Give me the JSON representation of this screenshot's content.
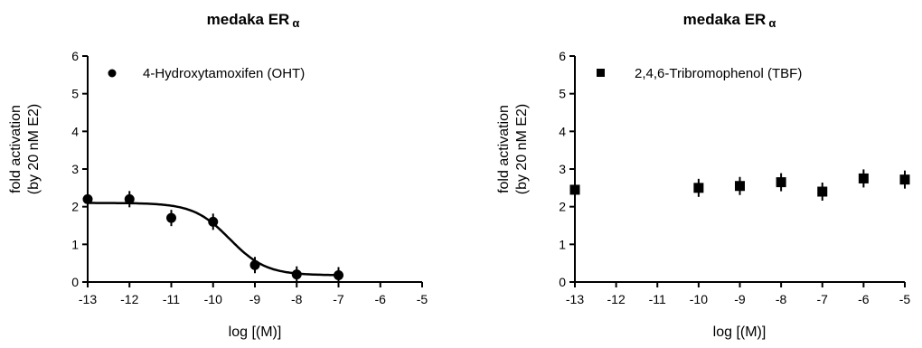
{
  "charts": [
    {
      "title_main": "medaka ER",
      "title_greek": "α",
      "xlabel": "log [(M)]",
      "ylabel_line1": "fold activation",
      "ylabel_line2": "(by 20 nM E2)",
      "legend_label": "4-Hydroxytamoxifen (OHT)"
    },
    {
      "title_main": "medaka ER",
      "title_greek": "α",
      "xlabel": "log [(M)]",
      "ylabel_line1": "fold activation",
      "ylabel_line2": "(by 20 nM E2)",
      "legend_label": "2,4,6-Tribromophenol (TBF)"
    }
  ],
  "chart_data": [
    {
      "type": "scatter",
      "title": "medaka ER α",
      "xlabel": "log [(M)]",
      "ylabel": "fold activation (by 20 nM E2)",
      "xlim": [
        -13,
        -5
      ],
      "ylim": [
        0,
        6
      ],
      "xticks": [
        -13,
        -12,
        -11,
        -10,
        -9,
        -8,
        -7,
        -6,
        -5
      ],
      "yticks": [
        0,
        1,
        2,
        3,
        4,
        5,
        6
      ],
      "marker": "circle",
      "legend_position": "top",
      "series": [
        {
          "name": "4-Hydroxytamoxifen (OHT)",
          "points": [
            {
              "x": -13,
              "y": 2.2
            },
            {
              "x": -12,
              "y": 2.2
            },
            {
              "x": -11,
              "y": 1.7
            },
            {
              "x": -10,
              "y": 1.6
            },
            {
              "x": -9,
              "y": 0.45
            },
            {
              "x": -8,
              "y": 0.2
            },
            {
              "x": -7,
              "y": 0.18
            }
          ],
          "fit": {
            "type": "sigmoid",
            "top": 2.1,
            "bottom": 0.18,
            "log_ic50": -9.6,
            "hill_slope": 1.0,
            "x_range": [
              -13,
              -7
            ]
          }
        }
      ]
    },
    {
      "type": "scatter",
      "title": "medaka ER α",
      "xlabel": "log [(M)]",
      "ylabel": "fold activation (by 20 nM E2)",
      "xlim": [
        -13,
        -5
      ],
      "ylim": [
        0,
        6
      ],
      "xticks": [
        -13,
        -12,
        -11,
        -10,
        -9,
        -8,
        -7,
        -6,
        -5
      ],
      "yticks": [
        0,
        1,
        2,
        3,
        4,
        5,
        6
      ],
      "marker": "square",
      "legend_position": "top",
      "series": [
        {
          "name": "2,4,6-Tribromophenol (TBF)",
          "points": [
            {
              "x": -13,
              "y": 2.45
            },
            {
              "x": -10,
              "y": 2.5
            },
            {
              "x": -9,
              "y": 2.55
            },
            {
              "x": -8,
              "y": 2.65
            },
            {
              "x": -7,
              "y": 2.4
            },
            {
              "x": -6,
              "y": 2.75
            },
            {
              "x": -5,
              "y": 2.72
            }
          ]
        }
      ]
    }
  ]
}
